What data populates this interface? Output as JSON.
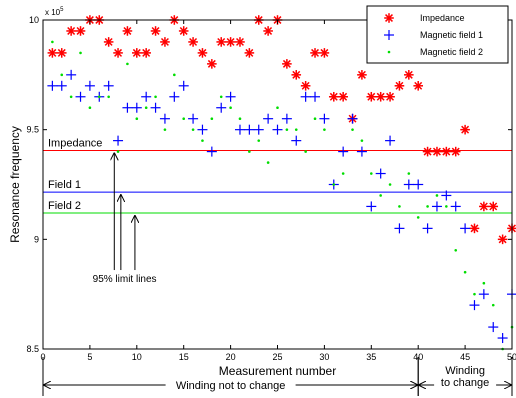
{
  "chart_data": {
    "type": "scatter",
    "xlabel": "Measurement number",
    "ylabel": "Resonance frequency",
    "y_exponent": "x 10",
    "y_exponent_power": "5",
    "xlim": [
      0,
      50
    ],
    "ylim": [
      850000,
      1000000
    ],
    "x_ticks": [
      0,
      5,
      10,
      15,
      20,
      25,
      30,
      35,
      40,
      45,
      50
    ],
    "y_ticks": [
      850000,
      900000,
      950000,
      1000000
    ],
    "y_tick_labels": [
      "8.5",
      "9",
      "9.5",
      "10"
    ],
    "grid": false,
    "legend_position": "top-right",
    "series": [
      {
        "name": "Impedance",
        "marker": "asterisk",
        "color": "#ff0000",
        "points": [
          [
            1,
            985000
          ],
          [
            2,
            985000
          ],
          [
            3,
            995000
          ],
          [
            4,
            995000
          ],
          [
            5,
            1000000
          ],
          [
            6,
            1000000
          ],
          [
            7,
            990000
          ],
          [
            8,
            985000
          ],
          [
            9,
            995000
          ],
          [
            10,
            985000
          ],
          [
            11,
            985000
          ],
          [
            12,
            995000
          ],
          [
            13,
            990000
          ],
          [
            14,
            1000000
          ],
          [
            15,
            995000
          ],
          [
            16,
            990000
          ],
          [
            17,
            985000
          ],
          [
            18,
            980000
          ],
          [
            19,
            990000
          ],
          [
            20,
            990000
          ],
          [
            21,
            990000
          ],
          [
            22,
            985000
          ],
          [
            23,
            1000000
          ],
          [
            24,
            995000
          ],
          [
            25,
            1000000
          ],
          [
            26,
            980000
          ],
          [
            27,
            975000
          ],
          [
            28,
            970000
          ],
          [
            29,
            985000
          ],
          [
            30,
            985000
          ],
          [
            31,
            965000
          ],
          [
            32,
            965000
          ],
          [
            33,
            955000
          ],
          [
            34,
            975000
          ],
          [
            35,
            965000
          ],
          [
            36,
            965000
          ],
          [
            37,
            965000
          ],
          [
            38,
            970000
          ],
          [
            39,
            975000
          ],
          [
            40,
            970000
          ],
          [
            41,
            940000
          ],
          [
            42,
            940000
          ],
          [
            43,
            940000
          ],
          [
            44,
            940000
          ],
          [
            45,
            950000
          ],
          [
            46,
            905000
          ],
          [
            47,
            915000
          ],
          [
            48,
            915000
          ],
          [
            49,
            900000
          ],
          [
            50,
            905000
          ]
        ]
      },
      {
        "name": "Magnetic field 1",
        "marker": "plus",
        "color": "#0000ff",
        "points": [
          [
            1,
            970000
          ],
          [
            2,
            970000
          ],
          [
            3,
            975000
          ],
          [
            4,
            965000
          ],
          [
            5,
            970000
          ],
          [
            6,
            965000
          ],
          [
            7,
            970000
          ],
          [
            8,
            945000
          ],
          [
            9,
            960000
          ],
          [
            10,
            960000
          ],
          [
            11,
            965000
          ],
          [
            12,
            960000
          ],
          [
            13,
            955000
          ],
          [
            14,
            965000
          ],
          [
            15,
            970000
          ],
          [
            16,
            955000
          ],
          [
            17,
            950000
          ],
          [
            18,
            940000
          ],
          [
            19,
            960000
          ],
          [
            20,
            965000
          ],
          [
            21,
            950000
          ],
          [
            22,
            950000
          ],
          [
            23,
            950000
          ],
          [
            24,
            955000
          ],
          [
            25,
            950000
          ],
          [
            26,
            955000
          ],
          [
            27,
            945000
          ],
          [
            28,
            965000
          ],
          [
            29,
            965000
          ],
          [
            30,
            955000
          ],
          [
            31,
            925000
          ],
          [
            32,
            940000
          ],
          [
            33,
            955000
          ],
          [
            34,
            940000
          ],
          [
            35,
            915000
          ],
          [
            36,
            930000
          ],
          [
            37,
            945000
          ],
          [
            38,
            905000
          ],
          [
            39,
            925000
          ],
          [
            40,
            925000
          ],
          [
            41,
            905000
          ],
          [
            42,
            915000
          ],
          [
            43,
            920000
          ],
          [
            44,
            915000
          ],
          [
            45,
            905000
          ],
          [
            46,
            870000
          ],
          [
            47,
            875000
          ],
          [
            48,
            860000
          ],
          [
            49,
            855000
          ],
          [
            50,
            875000
          ]
        ]
      },
      {
        "name": "Magnetic field 2",
        "marker": "dot",
        "color": "#00dd00",
        "points": [
          [
            1,
            990000
          ],
          [
            2,
            975000
          ],
          [
            3,
            965000
          ],
          [
            4,
            985000
          ],
          [
            5,
            960000
          ],
          [
            6,
            965000
          ],
          [
            7,
            965000
          ],
          [
            8,
            940000
          ],
          [
            9,
            980000
          ],
          [
            10,
            955000
          ],
          [
            11,
            960000
          ],
          [
            12,
            965000
          ],
          [
            13,
            950000
          ],
          [
            14,
            975000
          ],
          [
            15,
            955000
          ],
          [
            16,
            950000
          ],
          [
            17,
            945000
          ],
          [
            18,
            955000
          ],
          [
            19,
            965000
          ],
          [
            20,
            960000
          ],
          [
            21,
            955000
          ],
          [
            22,
            940000
          ],
          [
            23,
            945000
          ],
          [
            24,
            935000
          ],
          [
            25,
            960000
          ],
          [
            26,
            950000
          ],
          [
            27,
            950000
          ],
          [
            28,
            940000
          ],
          [
            29,
            955000
          ],
          [
            30,
            950000
          ],
          [
            31,
            925000
          ],
          [
            32,
            930000
          ],
          [
            33,
            950000
          ],
          [
            34,
            945000
          ],
          [
            35,
            930000
          ],
          [
            36,
            920000
          ],
          [
            37,
            925000
          ],
          [
            38,
            915000
          ],
          [
            39,
            930000
          ],
          [
            40,
            910000
          ],
          [
            41,
            915000
          ],
          [
            42,
            920000
          ],
          [
            43,
            915000
          ],
          [
            44,
            895000
          ],
          [
            45,
            885000
          ],
          [
            46,
            875000
          ],
          [
            47,
            880000
          ],
          [
            48,
            870000
          ],
          [
            49,
            850000
          ],
          [
            50,
            860000
          ]
        ]
      }
    ],
    "limit_lines": [
      {
        "label": "Impedance",
        "value": 940500,
        "color": "#ff0000"
      },
      {
        "label": "Field 1",
        "value": 921500,
        "color": "#0000ff"
      },
      {
        "label": "Field 2",
        "value": 912000,
        "color": "#00dd00"
      }
    ],
    "annotations": {
      "limit_lines_text": "95% limit lines",
      "arrow_targets": [
        {
          "x": 7.6,
          "y": 940500
        },
        {
          "x": 8.3,
          "y": 921500
        },
        {
          "x": 9.8,
          "y": 912000
        }
      ],
      "arrow_source_y": 886000
    },
    "regions": [
      {
        "label": "Winding not to change",
        "x_start": 0,
        "x_end": 40
      },
      {
        "label_lines": [
          "Winding",
          "to change"
        ],
        "x_start": 40,
        "x_end": 50
      }
    ]
  }
}
